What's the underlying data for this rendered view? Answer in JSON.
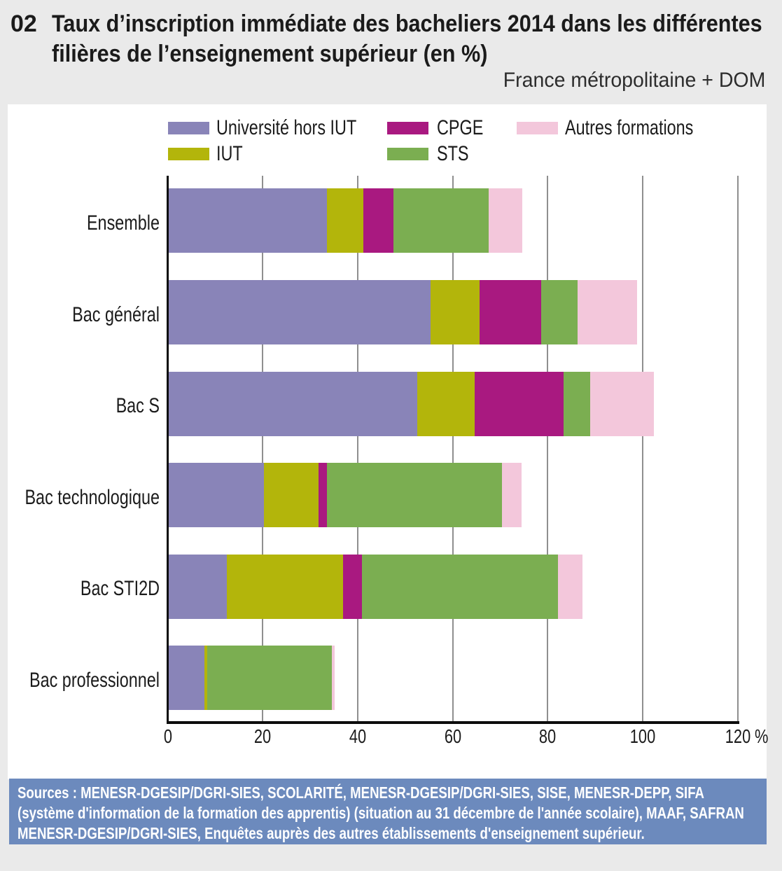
{
  "header": {
    "number": "02",
    "title": "Taux d’inscription immédiate des bacheliers 2014 dans les différentes filières de l’enseignement supérieur (en %)",
    "scope_note": "France métropolitaine + DOM"
  },
  "chart_data": {
    "type": "bar",
    "orientation": "horizontal",
    "stacked": true,
    "unit": "%",
    "title": "Taux d’inscription immédiate des bacheliers 2014 dans les différentes filières de l’enseignement supérieur (en %)",
    "categories": [
      "Ensemble",
      "Bac général",
      "Bac S",
      "Bac technologique",
      "Bac STI2D",
      "Bac professionnel"
    ],
    "series": [
      {
        "name": "Université hors IUT",
        "color": "#8984b8",
        "values": [
          33.6,
          55.3,
          52.6,
          20.2,
          12.5,
          7.7
        ]
      },
      {
        "name": "IUT",
        "color": "#b3b50b",
        "values": [
          7.6,
          10.4,
          12.0,
          11.5,
          24.4,
          0.6
        ]
      },
      {
        "name": "CPGE",
        "color": "#a91980",
        "values": [
          6.4,
          13.0,
          18.8,
          1.9,
          4.0,
          0.0
        ]
      },
      {
        "name": "STS",
        "color": "#7bae51",
        "values": [
          20.0,
          7.6,
          5.5,
          36.8,
          41.2,
          26.2
        ]
      },
      {
        "name": "Autres formations",
        "color": "#f3c7db",
        "values": [
          7.1,
          12.5,
          13.4,
          4.1,
          5.3,
          0.6
        ]
      }
    ],
    "x_axis": {
      "ticks": [
        0,
        20,
        40,
        60,
        80,
        100,
        120
      ],
      "unit_suffix": "%",
      "min": 0,
      "max": 120
    },
    "legend_rows": [
      [
        "Université hors IUT",
        "CPGE",
        "Autres formations"
      ],
      [
        "IUT",
        "STS"
      ]
    ],
    "grid": true,
    "legend_position": "top"
  },
  "footer": {
    "background": "#6c8abd",
    "lines": [
      "Sources : MENESR-DGESIP/DGRI-SIES, SCOLARITÉ, MENESR-DGESIP/DGRI-SIES, SISE, MENESR-DEPP, SIFA",
      "(système d'information de la formation des apprentis) (situation au 31 décembre de l'année scolaire), MAAF, SAFRAN",
      "MENESR-DGESIP/DGRI-SIES, Enquêtes auprès des autres établissements d'enseignement supérieur."
    ]
  }
}
